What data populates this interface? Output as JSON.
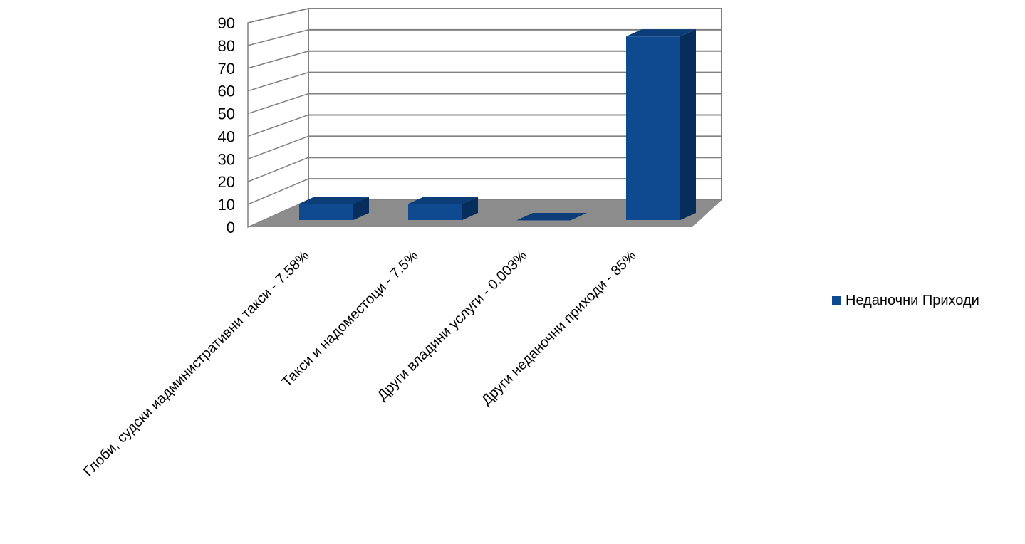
{
  "chart_data": {
    "type": "bar",
    "style": "3d",
    "categories": [
      "Глоби, судски иадминистративни такси - 7.58%",
      "Такси и надоместоци - 7.5%",
      "Други владини услуги - 0.003%",
      "Други неданочни приходи - 85%"
    ],
    "series": [
      {
        "name": "Неданочни Приходи",
        "values": [
          7.58,
          7.5,
          0.003,
          85
        ]
      }
    ],
    "ylim": [
      0,
      90
    ],
    "yticks": [
      0,
      10,
      20,
      30,
      40,
      50,
      60,
      70,
      80,
      90
    ],
    "grid": true,
    "legend_position": "right",
    "colors": {
      "bar_front": "#0f4a91",
      "bar_top": "#0c3d78",
      "bar_side": "#062d5c",
      "floor": "#8c8c8c",
      "grid": "#808080",
      "wall": "#ffffff"
    }
  },
  "legend": {
    "label": "Неданочни Приходи"
  }
}
